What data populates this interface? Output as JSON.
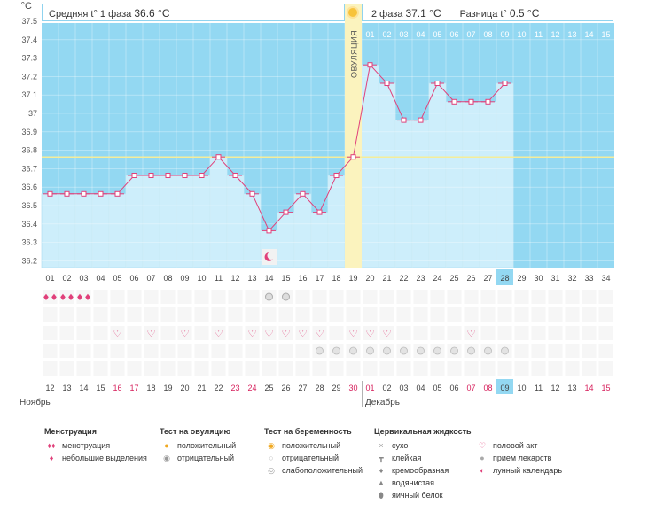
{
  "chart_data": {
    "type": "line",
    "ylabel": "°C",
    "ylim": [
      36.2,
      37.5
    ],
    "y_ticks": [
      "37.5",
      "37.4",
      "37.3",
      "37.2",
      "37.1",
      "37",
      "36.9",
      "36.8",
      "36.7",
      "36.6",
      "36.5",
      "36.4",
      "36.3",
      "36.2"
    ],
    "cycle_days": [
      "01",
      "02",
      "03",
      "04",
      "05",
      "06",
      "07",
      "08",
      "09",
      "10",
      "11",
      "12",
      "13",
      "14",
      "15",
      "16",
      "17",
      "18",
      "19",
      "20",
      "21",
      "22",
      "23",
      "24",
      "25",
      "26",
      "27",
      "28",
      "29",
      "30",
      "31",
      "32",
      "33",
      "34"
    ],
    "phase2_days": [
      "01",
      "02",
      "03",
      "04",
      "05",
      "06",
      "07",
      "08",
      "09",
      "10",
      "11",
      "12",
      "13",
      "14",
      "15"
    ],
    "temperatures": [
      36.6,
      36.6,
      36.6,
      36.6,
      36.6,
      36.7,
      36.7,
      36.7,
      36.7,
      36.7,
      36.8,
      36.7,
      36.6,
      36.4,
      36.5,
      36.6,
      36.5,
      36.7,
      36.8,
      37.3,
      37.2,
      37.0,
      37.0,
      37.2,
      37.1,
      37.1,
      37.1,
      37.2
    ],
    "coverline": 36.8,
    "ovulation_day": 19,
    "ovulation_label": "ОВУЛЯЦИЯ",
    "current_day": 28,
    "calendar_dates": [
      "12",
      "13",
      "14",
      "15",
      "16",
      "17",
      "18",
      "19",
      "20",
      "21",
      "22",
      "23",
      "24",
      "25",
      "26",
      "27",
      "28",
      "29",
      "30",
      "01",
      "02",
      "03",
      "04",
      "05",
      "06",
      "07",
      "08",
      "09",
      "10",
      "11",
      "12",
      "13",
      "14",
      "15"
    ],
    "weekend_days": [
      5,
      6,
      12,
      13,
      19,
      20,
      26,
      27,
      33,
      34
    ],
    "months": [
      "Ноябрь",
      "Декабрь"
    ],
    "menstruation_days": [
      1,
      2,
      3
    ],
    "ovulation_test_negative_days": [
      14,
      15
    ],
    "intercourse_days": [
      5,
      7,
      9,
      11,
      13,
      14,
      15,
      16,
      17,
      19,
      20,
      21,
      26
    ],
    "medication_days": [
      17,
      18,
      19,
      20,
      21,
      22,
      23,
      24,
      25,
      26,
      27,
      28
    ],
    "moon_day": 14
  },
  "summary": {
    "phase1_label": "Средняя t° 1 фаза",
    "phase1_value": "36.6 °С",
    "phase2_label": "2 фаза",
    "phase2_value": "37.1 °С",
    "diff_label": "Разница t°",
    "diff_value": "0.5 °С"
  },
  "legend": {
    "menstruation": {
      "title": "Менструация",
      "items": [
        "менструация",
        "небольшие выделения"
      ]
    },
    "ovulation_test": {
      "title": "Тест на овуляцию",
      "items": [
        "положительный",
        "отрицательный"
      ]
    },
    "pregnancy_test": {
      "title": "Тест на беременность",
      "items": [
        "положительный",
        "отрицательный",
        "слабоположительный"
      ]
    },
    "cervical": {
      "title": "Цервикальная жидкость",
      "items": [
        "сухо",
        "клейкая",
        "кремообразная",
        "водянистая",
        "яичный белок"
      ]
    },
    "other": {
      "items": [
        "половой акт",
        "прием лекарств",
        "лунный календарь"
      ]
    }
  },
  "colors": {
    "plot_bg": "#93d8f2",
    "bar": "#cdeefb",
    "line": "#e0407a",
    "ovulation": "#fbf3be",
    "coverline": "#f5ed9a",
    "current": "#93d8f2",
    "weekend": "#d6205c"
  }
}
